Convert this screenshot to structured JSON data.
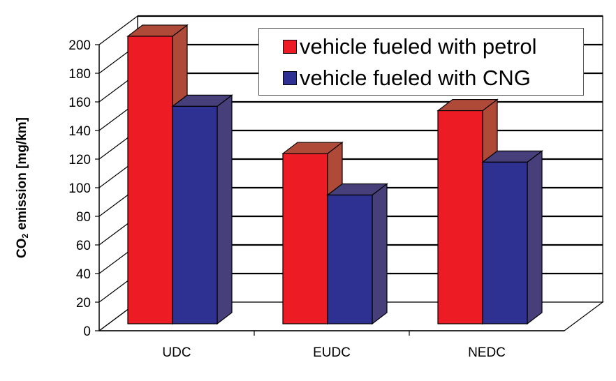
{
  "chart_data": {
    "type": "bar",
    "title": "",
    "xlabel": "",
    "ylabel": {
      "main": "CO",
      "subscript": "2",
      "rest": " emission [mg/km]"
    },
    "categories": [
      "UDC",
      "EUDC",
      "NEDC"
    ],
    "series": [
      {
        "name": "vehicle fueled with petrol",
        "values": [
          201,
          119,
          149
        ]
      },
      {
        "name": "vehicle fueled with CNG",
        "values": [
          152,
          90,
          113
        ]
      }
    ],
    "ylim": [
      0,
      200
    ],
    "yticks": [
      "0",
      "20",
      "40",
      "60",
      "80",
      "100",
      "120",
      "140",
      "160",
      "180",
      "200"
    ],
    "grid": true,
    "legend_position": "top-right",
    "colors": {
      "petrol_front": "#ed1c24",
      "petrol_side": "#b04a38",
      "cng_front": "#2e3092",
      "cng_side": "#463f7a",
      "edge": "#000000"
    }
  }
}
